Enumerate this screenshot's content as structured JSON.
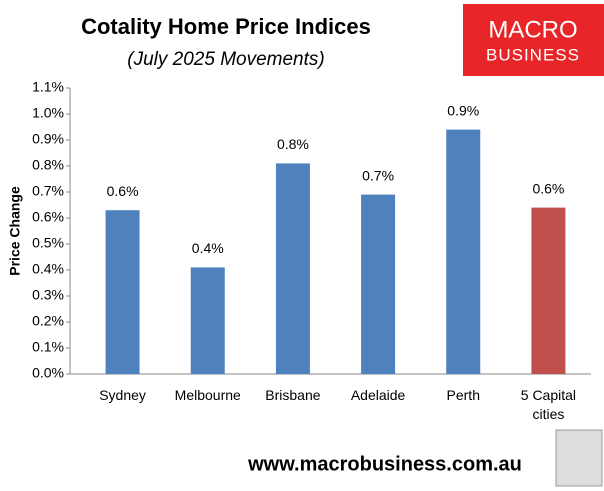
{
  "chart_data": {
    "type": "bar",
    "title": "Cotality Home Price Indices",
    "subtitle": "(July 2025 Movements)",
    "y_label": "Price Change",
    "categories": [
      "Sydney",
      "Melbourne",
      "Brisbane",
      "Adelaide",
      "Perth",
      "5 Capital cities"
    ],
    "values": [
      0.63,
      0.41,
      0.81,
      0.69,
      0.94,
      0.64
    ],
    "value_labels": [
      "0.6%",
      "0.4%",
      "0.8%",
      "0.7%",
      "0.9%",
      "0.6%"
    ],
    "colors": [
      "#4f81bd",
      "#4f81bd",
      "#4f81bd",
      "#4f81bd",
      "#4f81bd",
      "#c0504d"
    ],
    "ylim": [
      0,
      1.1
    ],
    "yticks": [
      {
        "value": 0,
        "label": "0.0%"
      },
      {
        "value": 0.1,
        "label": "0.1%"
      },
      {
        "value": 0.2,
        "label": "0.2%"
      },
      {
        "value": 0.3,
        "label": "0.3%"
      },
      {
        "value": 0.4,
        "label": "0.4%"
      },
      {
        "value": 0.5,
        "label": "0.5%"
      },
      {
        "value": 0.6,
        "label": "0.6%"
      },
      {
        "value": 0.7,
        "label": "0.7%"
      },
      {
        "value": 0.8,
        "label": "0.8%"
      },
      {
        "value": 0.9,
        "label": "0.9%"
      },
      {
        "value": 1.0,
        "label": "1.0%"
      },
      {
        "value": 1.1,
        "label": "1.1%"
      }
    ],
    "grid": false
  },
  "logo": {
    "line1": "MACRO",
    "line2": "BUSINESS"
  },
  "footer": "www.macrobusiness.com.au"
}
